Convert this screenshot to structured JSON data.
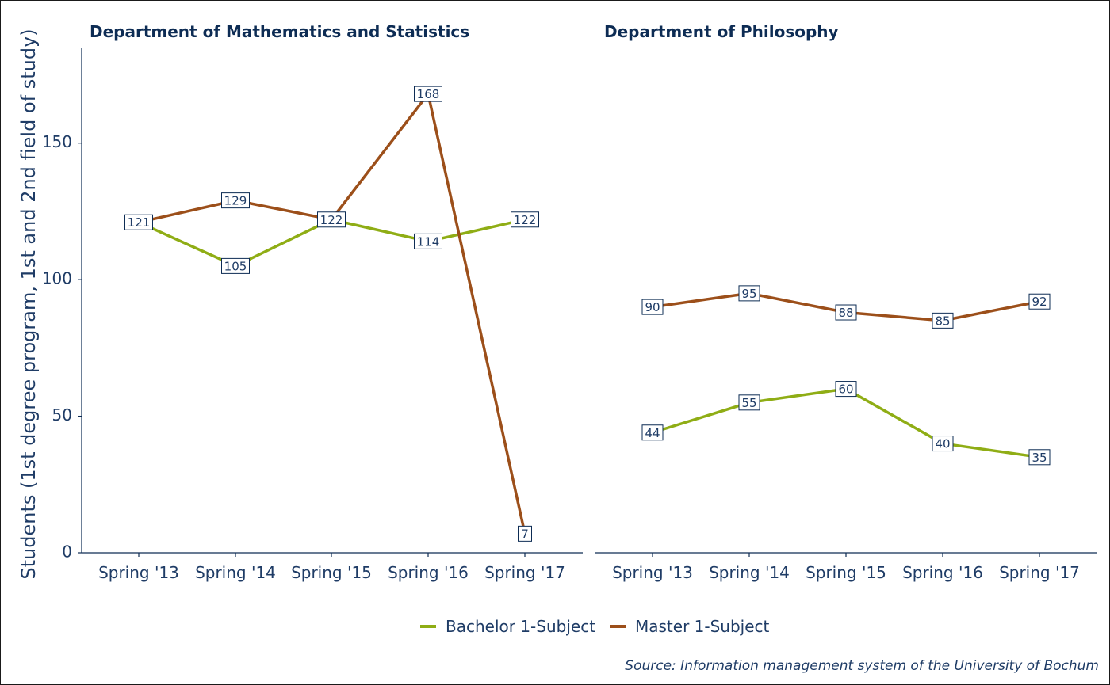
{
  "chart_data": {
    "type": "line",
    "ylabel": "Students (1st degree program, 1st and 2nd field of study)",
    "ylim": [
      0,
      185
    ],
    "yticks": [
      0,
      50,
      100,
      150
    ],
    "categories": [
      "Spring '13",
      "Spring '14",
      "Spring '15",
      "Spring '16",
      "Spring '17"
    ],
    "legend_position": "bottom",
    "grid": false,
    "colors": {
      "Bachelor 1-Subject": "#8fad15",
      "Master 1-Subject": "#9c4f1a"
    },
    "legend": [
      "Bachelor 1-Subject",
      "Master 1-Subject"
    ],
    "panels": [
      {
        "title": "Department of Mathematics and Statistics",
        "series": [
          {
            "name": "Bachelor 1-Subject",
            "values": [
              121,
              105,
              122,
              114,
              122
            ]
          },
          {
            "name": "Master 1-Subject",
            "values": [
              121,
              129,
              122,
              168,
              7
            ]
          }
        ],
        "labels": [
          {
            "text": "121",
            "cat": 0,
            "y": 121
          },
          {
            "text": "129",
            "cat": 1,
            "y": 129
          },
          {
            "text": "105",
            "cat": 1,
            "y": 105
          },
          {
            "text": "122",
            "cat": 2,
            "y": 122
          },
          {
            "text": "168",
            "cat": 3,
            "y": 168
          },
          {
            "text": "114",
            "cat": 3,
            "y": 114
          },
          {
            "text": "122",
            "cat": 4,
            "y": 122
          },
          {
            "text": "7",
            "cat": 4,
            "y": 7
          }
        ]
      },
      {
        "title": "Department of Philosophy",
        "series": [
          {
            "name": "Bachelor 1-Subject",
            "values": [
              44,
              55,
              60,
              40,
              35
            ]
          },
          {
            "name": "Master 1-Subject",
            "values": [
              90,
              95,
              88,
              85,
              92
            ]
          }
        ],
        "labels": [
          {
            "text": "90",
            "cat": 0,
            "y": 90
          },
          {
            "text": "95",
            "cat": 1,
            "y": 95
          },
          {
            "text": "88",
            "cat": 2,
            "y": 88
          },
          {
            "text": "85",
            "cat": 3,
            "y": 85
          },
          {
            "text": "92",
            "cat": 4,
            "y": 92
          },
          {
            "text": "44",
            "cat": 0,
            "y": 44
          },
          {
            "text": "55",
            "cat": 1,
            "y": 55
          },
          {
            "text": "60",
            "cat": 2,
            "y": 60
          },
          {
            "text": "40",
            "cat": 3,
            "y": 40
          },
          {
            "text": "35",
            "cat": 4,
            "y": 35
          }
        ]
      }
    ]
  },
  "source": "Source: Information management system of the University of Bochum"
}
